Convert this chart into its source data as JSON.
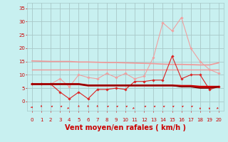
{
  "background_color": "#c8f0f0",
  "grid_color": "#a8c8c8",
  "xlabel": "Vent moyen/en rafales ( km/h )",
  "xlabel_color": "#cc0000",
  "xlabel_fontsize": 7,
  "tick_color": "#cc0000",
  "ytick_labels": [
    "0",
    "5",
    "10",
    "15",
    "20",
    "25",
    "30",
    "35"
  ],
  "yticks": [
    0,
    5,
    10,
    15,
    20,
    25,
    30,
    35
  ],
  "xticks": [
    0,
    1,
    2,
    3,
    4,
    5,
    6,
    7,
    8,
    9,
    10,
    11,
    12,
    13,
    14,
    15,
    16,
    17,
    18,
    19,
    20
  ],
  "ylim": [
    -3.5,
    37
  ],
  "xlim": [
    -0.5,
    20.5
  ],
  "series": [
    {
      "name": "flat_high",
      "x": [
        0,
        1,
        2,
        3,
        4,
        5,
        6,
        7,
        8,
        9,
        10,
        11,
        12,
        13,
        14,
        15,
        16,
        17,
        18,
        19,
        20
      ],
      "y": [
        15.2,
        15.1,
        15.0,
        15.0,
        15.0,
        14.8,
        14.8,
        14.7,
        14.6,
        14.6,
        14.5,
        14.4,
        14.3,
        14.2,
        14.0,
        13.9,
        13.9,
        13.8,
        13.7,
        13.7,
        14.5
      ],
      "color": "#f09898",
      "lw": 1.2,
      "marker": null,
      "zorder": 2
    },
    {
      "name": "flat_mid",
      "x": [
        0,
        1,
        2,
        3,
        4,
        5,
        6,
        7,
        8,
        9,
        10,
        11,
        12,
        13,
        14,
        15,
        16,
        17,
        18,
        19,
        20
      ],
      "y": [
        12.0,
        12.0,
        12.0,
        12.0,
        12.0,
        12.0,
        12.0,
        12.0,
        12.0,
        12.0,
        12.0,
        12.0,
        12.0,
        12.0,
        12.0,
        12.0,
        12.0,
        12.0,
        12.0,
        12.0,
        12.0
      ],
      "color": "#f09898",
      "lw": 1.0,
      "marker": null,
      "zorder": 2
    },
    {
      "name": "zigzag_pink",
      "x": [
        0,
        1,
        2,
        3,
        4,
        5,
        6,
        7,
        8,
        9,
        10,
        11,
        12,
        13,
        14,
        15,
        16,
        17,
        18,
        19,
        20
      ],
      "y": [
        6.5,
        6.5,
        6.5,
        8.5,
        5.5,
        10.0,
        9.0,
        8.5,
        10.5,
        9.0,
        10.5,
        8.5,
        9.5,
        16.5,
        29.5,
        26.5,
        31.5,
        20.0,
        15.0,
        12.0,
        10.5
      ],
      "color": "#f0a0a0",
      "lw": 0.8,
      "marker": "D",
      "markersize": 1.8,
      "zorder": 3
    },
    {
      "name": "zigzag_red",
      "x": [
        0,
        1,
        2,
        3,
        4,
        5,
        6,
        7,
        8,
        9,
        10,
        11,
        12,
        13,
        14,
        15,
        16,
        17,
        18,
        19,
        20
      ],
      "y": [
        6.5,
        6.5,
        6.5,
        3.5,
        1.0,
        3.5,
        1.0,
        4.5,
        4.5,
        5.0,
        4.5,
        7.5,
        7.5,
        8.0,
        8.0,
        17.0,
        8.5,
        10.0,
        10.0,
        4.5,
        5.5
      ],
      "color": "#dd2222",
      "lw": 0.8,
      "marker": "D",
      "markersize": 1.8,
      "zorder": 4
    },
    {
      "name": "flat_red",
      "x": [
        0,
        1,
        2,
        3,
        4,
        5,
        6,
        7,
        8,
        9,
        10,
        11,
        12,
        13,
        14,
        15,
        16,
        17,
        18,
        19,
        20
      ],
      "y": [
        6.5,
        6.5,
        6.5,
        6.5,
        6.5,
        6.5,
        6.0,
        6.0,
        6.0,
        6.0,
        6.0,
        6.0,
        6.0,
        6.0,
        6.0,
        6.0,
        5.8,
        5.8,
        5.5,
        5.5,
        5.5
      ],
      "color": "#cc0000",
      "lw": 2.0,
      "marker": null,
      "zorder": 5
    },
    {
      "name": "flat_darkred",
      "x": [
        0,
        1,
        2,
        3,
        4,
        5,
        6,
        7,
        8,
        9,
        10,
        11,
        12,
        13,
        14,
        15,
        16,
        17,
        18,
        19,
        20
      ],
      "y": [
        6.5,
        6.5,
        6.5,
        6.5,
        6.5,
        6.5,
        6.0,
        6.0,
        6.0,
        6.0,
        6.0,
        6.0,
        6.0,
        6.0,
        6.0,
        6.0,
        5.5,
        5.5,
        5.0,
        5.0,
        5.5
      ],
      "color": "#880000",
      "lw": 1.2,
      "marker": null,
      "zorder": 5
    }
  ],
  "arrows": {
    "x": [
      0,
      1,
      2,
      3,
      4,
      5,
      6,
      7,
      8,
      9,
      10,
      11,
      12,
      13,
      14,
      15,
      16,
      17,
      18,
      19,
      20
    ],
    "angles_deg": [
      270,
      0,
      45,
      45,
      225,
      0,
      0,
      0,
      45,
      45,
      45,
      225,
      45,
      45,
      45,
      45,
      45,
      45,
      180,
      180,
      225
    ],
    "color": "#dd3333"
  }
}
